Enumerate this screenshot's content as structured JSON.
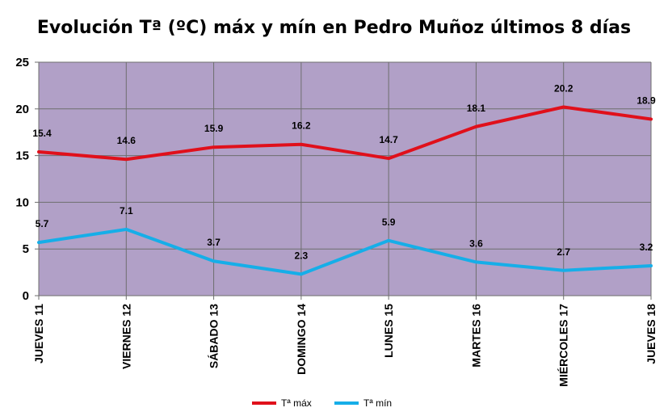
{
  "chart_data": {
    "type": "line",
    "title": "Evolución Tª (ºC) máx y mín en Pedro Muñoz últimos 8 días",
    "categories": [
      "JUEVES 11",
      "VIERNES 12",
      "SÁBADO 13",
      "DOMINGO 14",
      "LUNES 15",
      "MARTES 16",
      "MIÉRCOLES 17",
      "JUEVES 18"
    ],
    "series": [
      {
        "name": "Tª máx",
        "color": "#e0101b",
        "values": [
          15.4,
          14.6,
          15.9,
          16.2,
          14.7,
          18.1,
          20.2,
          18.9
        ]
      },
      {
        "name": "Tª mín",
        "color": "#16aee8",
        "values": [
          5.7,
          7.1,
          3.7,
          2.3,
          5.9,
          3.6,
          2.7,
          3.2
        ]
      }
    ],
    "ylim": [
      0,
      25
    ],
    "yticks": [
      0,
      5,
      10,
      15,
      20,
      25
    ],
    "grid": true,
    "plot_background": "#b1a0c7",
    "legend_position": "bottom"
  }
}
